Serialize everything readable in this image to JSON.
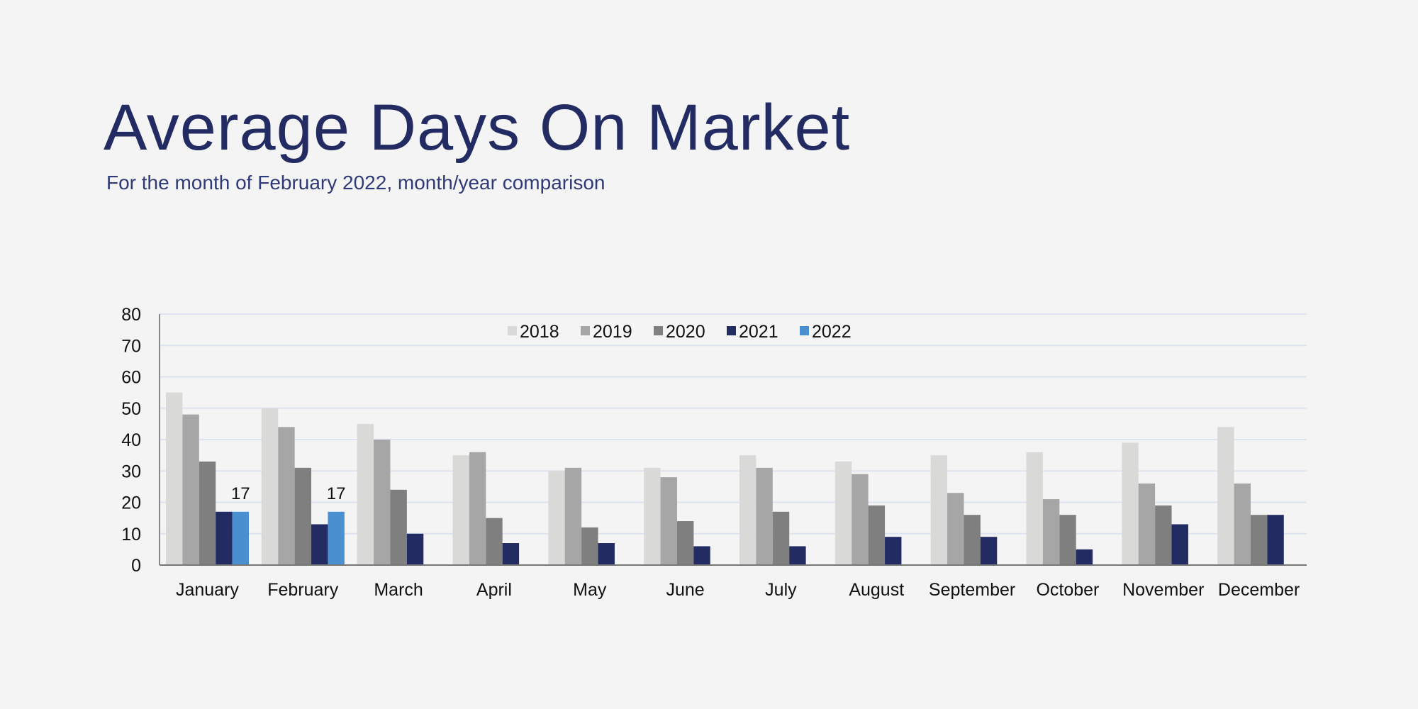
{
  "header": {
    "title": "Average Days On Market",
    "subtitle": "For the month of February 2022, month/year comparison"
  },
  "chart_data": {
    "type": "bar",
    "title": "",
    "xlabel": "",
    "ylabel": "",
    "ylim": [
      0,
      80
    ],
    "yticks": [
      0,
      10,
      20,
      30,
      40,
      50,
      60,
      70,
      80
    ],
    "grid": true,
    "legend_position": "top-center",
    "categories": [
      "January",
      "February",
      "March",
      "April",
      "May",
      "June",
      "July",
      "August",
      "September",
      "October",
      "November",
      "December"
    ],
    "series": [
      {
        "name": "2018",
        "color": "#d9d9d7",
        "values": [
          55,
          50,
          45,
          35,
          30,
          31,
          35,
          33,
          35,
          36,
          39,
          44
        ]
      },
      {
        "name": "2019",
        "color": "#a6a6a6",
        "values": [
          48,
          44,
          40,
          36,
          31,
          28,
          31,
          29,
          23,
          21,
          26,
          26
        ]
      },
      {
        "name": "2020",
        "color": "#7f7f7f",
        "values": [
          33,
          31,
          24,
          15,
          12,
          14,
          17,
          19,
          16,
          16,
          19,
          16
        ]
      },
      {
        "name": "2021",
        "color": "#232b63",
        "values": [
          17,
          13,
          10,
          7,
          7,
          6,
          6,
          9,
          9,
          5,
          13,
          16
        ]
      },
      {
        "name": "2022",
        "color": "#4a8fcf",
        "values": [
          17,
          17,
          null,
          null,
          null,
          null,
          null,
          null,
          null,
          null,
          null,
          null
        ]
      }
    ],
    "data_labels": [
      {
        "series": "2022",
        "category": "January",
        "text": "17"
      },
      {
        "series": "2022",
        "category": "February",
        "text": "17"
      }
    ]
  }
}
